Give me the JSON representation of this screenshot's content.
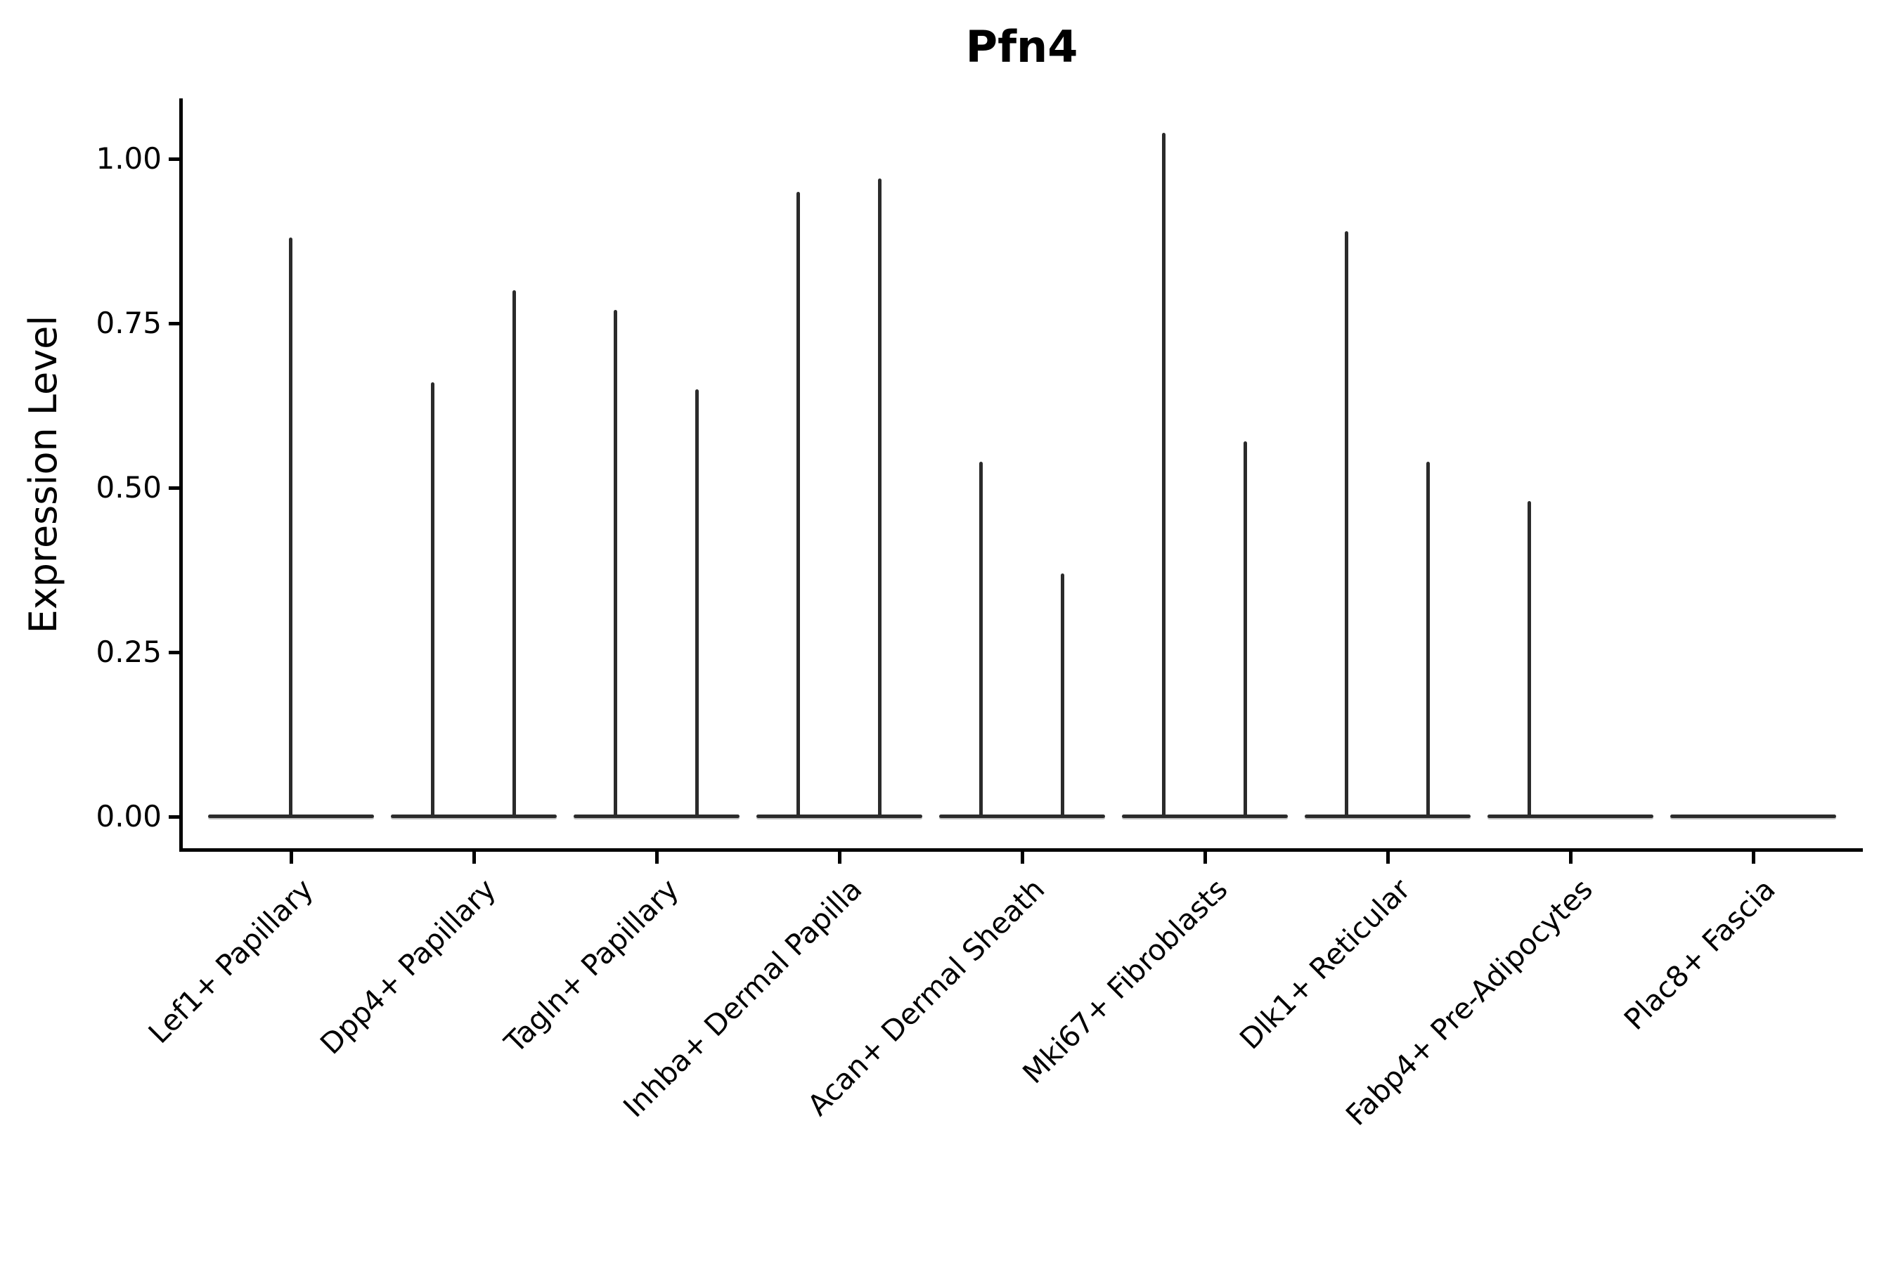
{
  "chart_data": {
    "type": "violin",
    "title": "Pfn4",
    "xlabel": "",
    "ylabel": "Expression Level",
    "ylim": [
      -0.05,
      1.09
    ],
    "grid": false,
    "legend": "none",
    "yticks": {
      "values": [
        0.0,
        0.25,
        0.5,
        0.75,
        1.0
      ],
      "labels": [
        "0.00",
        "0.25",
        "0.50",
        "0.75",
        "1.00"
      ]
    },
    "colors": {
      "violin_stroke": "#2b2b2b",
      "axis": "#000000",
      "background": "#ffffff"
    },
    "style_notes": "violins collapsed to flat base at 0 with thin density spikes; two grouped violins per category where two spikes shown",
    "categories": [
      {
        "label": "Lef1+ Papillary",
        "spikes": [
          {
            "position": "center",
            "max": 0.88
          }
        ]
      },
      {
        "label": "Dpp4+ Papillary",
        "spikes": [
          {
            "position": "left",
            "max": 0.66
          },
          {
            "position": "right",
            "max": 0.8
          }
        ]
      },
      {
        "label": "Tagln+ Papillary",
        "spikes": [
          {
            "position": "left",
            "max": 0.77
          },
          {
            "position": "right",
            "max": 0.65
          }
        ]
      },
      {
        "label": "Inhba+ Dermal Papilla",
        "spikes": [
          {
            "position": "left",
            "max": 0.95
          },
          {
            "position": "right",
            "max": 0.97
          }
        ]
      },
      {
        "label": "Acan+ Dermal Sheath",
        "spikes": [
          {
            "position": "left",
            "max": 0.54
          },
          {
            "position": "right",
            "max": 0.37
          }
        ]
      },
      {
        "label": "Mki67+ Fibroblasts",
        "spikes": [
          {
            "position": "left",
            "max": 1.04
          },
          {
            "position": "right",
            "max": 0.57
          }
        ]
      },
      {
        "label": "Dlk1+ Reticular",
        "spikes": [
          {
            "position": "left",
            "max": 0.89
          },
          {
            "position": "right",
            "max": 0.54
          }
        ]
      },
      {
        "label": "Fabp4+ Pre-Adipocytes",
        "spikes": [
          {
            "position": "left",
            "max": 0.48
          }
        ]
      },
      {
        "label": "Plac8+ Fascia",
        "spikes": []
      }
    ]
  }
}
